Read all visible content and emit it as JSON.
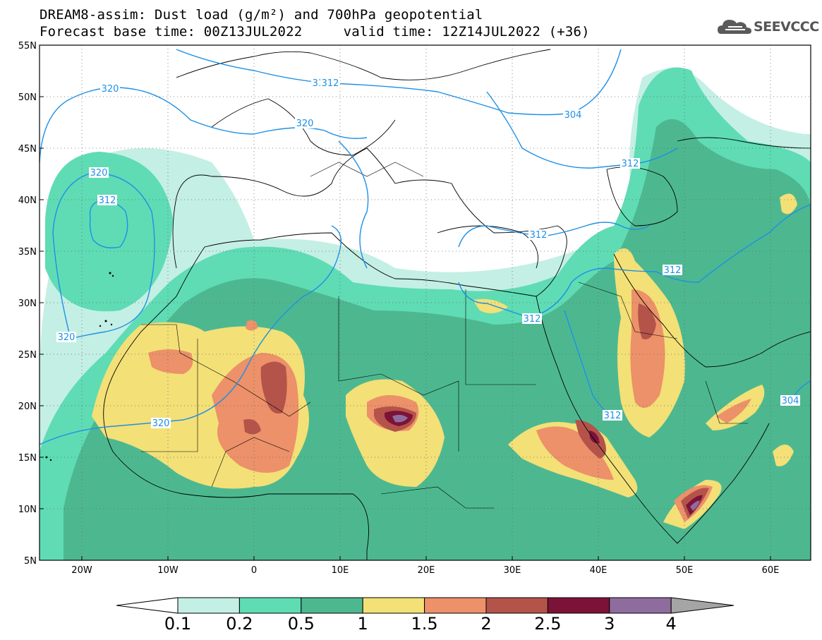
{
  "title": {
    "line1": "DREAM8-assim: Dust load (g/m²) and 700hPa geopotential",
    "line2": "Forecast base time: 00Z13JUL2022     valid time: 12Z14JUL2022 (+36)"
  },
  "logo": {
    "text": "SEEVCCC",
    "icon": "cloud-logo-icon"
  },
  "axes": {
    "lat_labels": [
      "55N",
      "50N",
      "45N",
      "40N",
      "35N",
      "30N",
      "25N",
      "20N",
      "15N",
      "10N",
      "5N"
    ],
    "lon_labels": [
      "20W",
      "10W",
      "0",
      "10E",
      "20E",
      "30E",
      "40E",
      "50E",
      "60E"
    ]
  },
  "contour_labels": [
    "320",
    "312",
    "320",
    "320",
    "312",
    "312",
    "320",
    "304",
    "312",
    "312",
    "312",
    "312",
    "320",
    "304",
    "312"
  ],
  "colorbar": {
    "labels": [
      "0.1",
      "0.2",
      "0.5",
      "1",
      "1.5",
      "2",
      "2.5",
      "3",
      "4"
    ],
    "colors": [
      "#c4efe4",
      "#5fdcb4",
      "#4db890",
      "#f3e077",
      "#ec9169",
      "#b4534a",
      "#7d1238",
      "#8f6c9e"
    ],
    "under_color": "#ffffff",
    "over_color": "#a5a5a5"
  },
  "field_colors": {
    "lvl1": "#c4efe4",
    "lvl2": "#5fdcb4",
    "lvl3": "#4db890",
    "lvl4": "#f3e077",
    "lvl5": "#ec9169",
    "lvl6": "#b4534a",
    "lvl7": "#7d1238",
    "lvl8": "#8f6c9e",
    "contour": "#1e90e6"
  }
}
